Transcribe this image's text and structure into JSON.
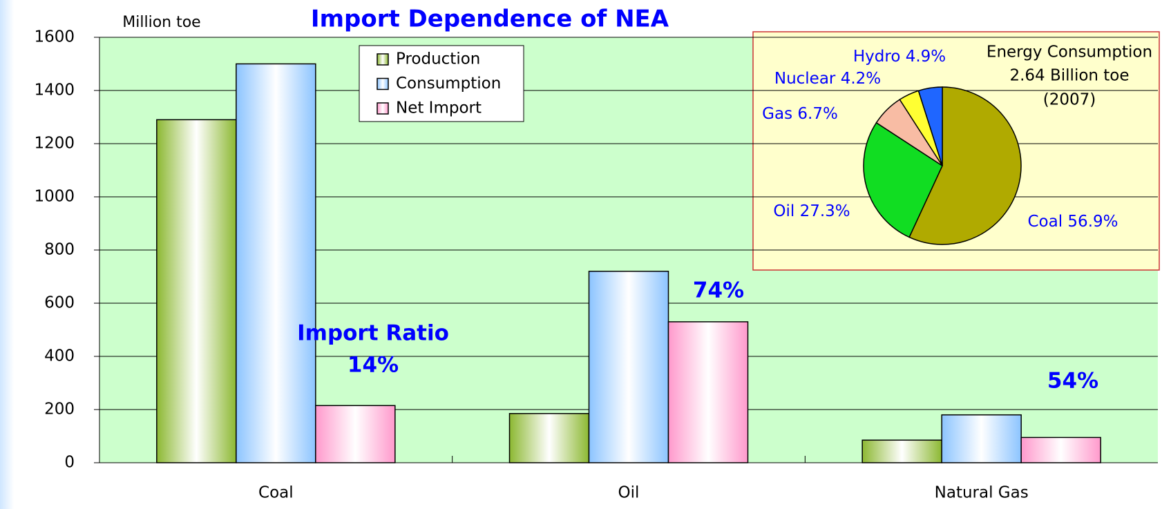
{
  "chart_data": [
    {
      "type": "bar",
      "title": "Import Dependence of NEA",
      "ylabel": "Million toe",
      "categories": [
        "Coal",
        "Oil",
        "Natural Gas"
      ],
      "series": [
        {
          "name": "Production",
          "color": "#8cb832",
          "values": [
            1290,
            185,
            85
          ]
        },
        {
          "name": "Consumption",
          "color": "#8cc4ff",
          "values": [
            1500,
            720,
            180
          ]
        },
        {
          "name": "Net Import",
          "color": "#ff99cc",
          "values": [
            215,
            530,
            95
          ]
        }
      ],
      "ylim": [
        0,
        1600
      ],
      "yticks": [
        0,
        200,
        400,
        600,
        800,
        1000,
        1200,
        1400,
        1600
      ],
      "grid": true,
      "legend": "top",
      "annotations": [
        "Import Ratio",
        "14%",
        "74%",
        "54%"
      ]
    },
    {
      "type": "pie",
      "title": "Energy Consumption",
      "subtitle": "2.64 Billion toe",
      "annotations": [
        "(2007)"
      ],
      "categories": [
        "Coal",
        "Oil",
        "Gas",
        "Nuclear",
        "Hydro"
      ],
      "values": [
        56.9,
        27.3,
        6.7,
        4.2,
        4.9
      ],
      "value_labels": [
        "56.9%",
        "27.3%",
        "6.7%",
        "4.2%",
        "4.9%"
      ],
      "colors": [
        "#b0aa00",
        "#11dd22",
        "#f8bca4",
        "#ffff33",
        "#1f66ff"
      ]
    }
  ]
}
